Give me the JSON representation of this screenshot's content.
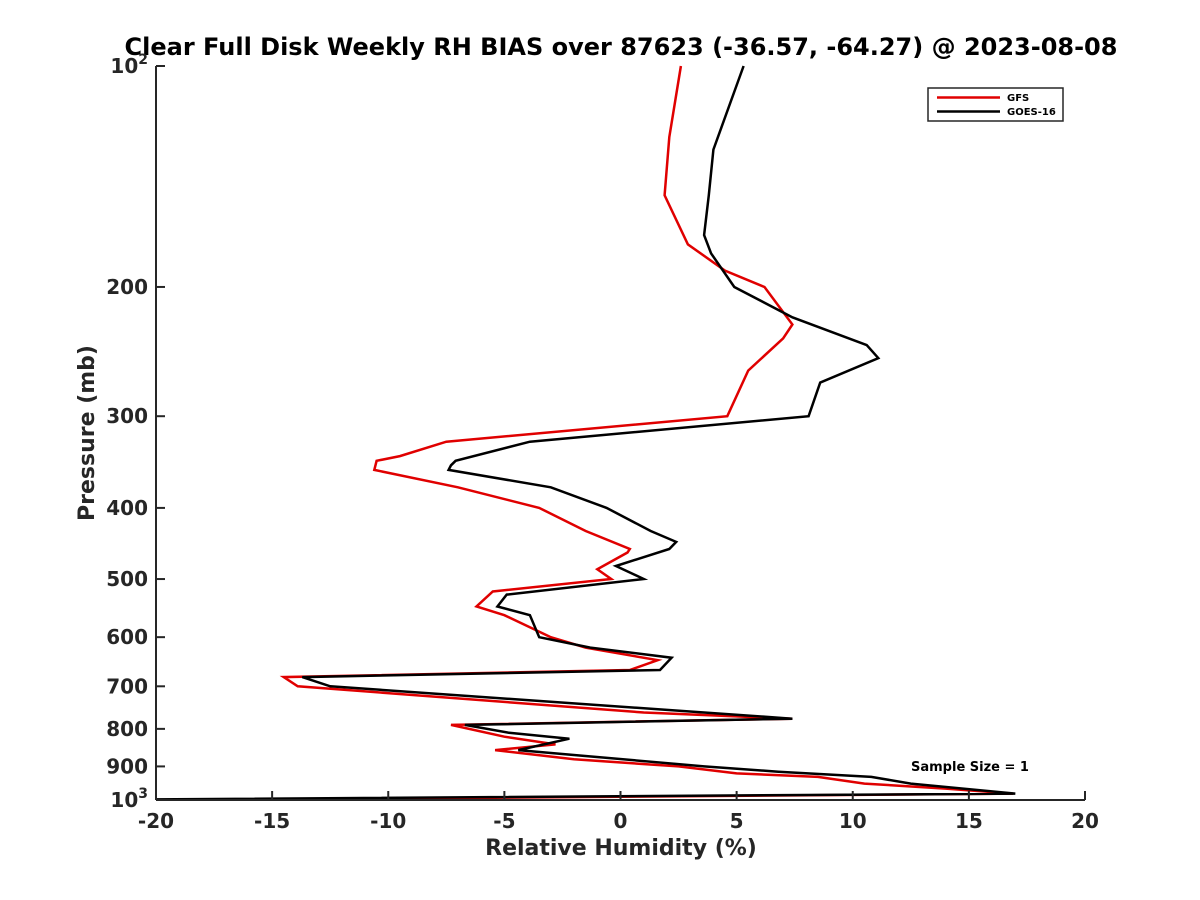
{
  "chart_data": {
    "type": "line",
    "title": "Clear Full Disk Weekly RH BIAS over 87623 (-36.57, -64.27) @ 2023-08-08",
    "xlabel": "Relative Humidity (%)",
    "ylabel": "Pressure (mb)",
    "xlim": [
      -20,
      20
    ],
    "ylim": [
      100,
      1000
    ],
    "y_scale": "log",
    "y_reversed": true,
    "grid": false,
    "legend_position": "top-right",
    "annotation": "Sample Size = 1",
    "x_ticks": [
      "-20",
      "-15",
      "-10",
      "-5",
      "0",
      "5",
      "10",
      "15",
      "20"
    ],
    "x_tick_values": [
      -20,
      -15,
      -10,
      -5,
      0,
      5,
      10,
      15,
      20
    ],
    "y_ticks": [
      {
        "value": 100,
        "base": "10",
        "exp": "2"
      },
      {
        "value": 200,
        "label": "200"
      },
      {
        "value": 300,
        "label": "300"
      },
      {
        "value": 400,
        "label": "400"
      },
      {
        "value": 500,
        "label": "500"
      },
      {
        "value": 600,
        "label": "600"
      },
      {
        "value": 700,
        "label": "700"
      },
      {
        "value": 800,
        "label": "800"
      },
      {
        "value": 900,
        "label": "900"
      },
      {
        "value": 1000,
        "base": "10",
        "exp": "3"
      }
    ],
    "series": [
      {
        "name": "GFS",
        "color": "#e00000",
        "points": [
          [
            2.6,
            100
          ],
          [
            2.1,
            125
          ],
          [
            1.9,
            150
          ],
          [
            2.9,
            175
          ],
          [
            4.5,
            190
          ],
          [
            6.2,
            200
          ],
          [
            7.4,
            225
          ],
          [
            7.0,
            235
          ],
          [
            5.5,
            260
          ],
          [
            4.6,
            300
          ],
          [
            -7.5,
            325
          ],
          [
            -9.5,
            340
          ],
          [
            -10.5,
            345
          ],
          [
            -10.6,
            355
          ],
          [
            -7.0,
            375
          ],
          [
            -3.5,
            400
          ],
          [
            -1.5,
            430
          ],
          [
            0.4,
            455
          ],
          [
            0.3,
            460
          ],
          [
            -1.0,
            485
          ],
          [
            -0.4,
            500
          ],
          [
            -5.5,
            520
          ],
          [
            -6.2,
            545
          ],
          [
            -5.0,
            560
          ],
          [
            -3.0,
            600
          ],
          [
            -1.5,
            620
          ],
          [
            1.6,
            645
          ],
          [
            0.4,
            665
          ],
          [
            -14.5,
            680
          ],
          [
            -13.9,
            700
          ],
          [
            1.0,
            760
          ],
          [
            7.4,
            775
          ],
          [
            -7.3,
            790
          ],
          [
            -5.0,
            820
          ],
          [
            -2.8,
            840
          ],
          [
            -5.4,
            855
          ],
          [
            -2.0,
            880
          ],
          [
            2.5,
            900
          ],
          [
            5.0,
            920
          ],
          [
            8.5,
            930
          ],
          [
            10.5,
            950
          ],
          [
            14.0,
            965
          ],
          [
            16.9,
            980
          ],
          [
            -14.0,
            998
          ]
        ]
      },
      {
        "name": "GOES-16",
        "color": "#000000",
        "points": [
          [
            5.3,
            100
          ],
          [
            4.0,
            130
          ],
          [
            3.8,
            150
          ],
          [
            3.6,
            170
          ],
          [
            3.9,
            180
          ],
          [
            4.9,
            200
          ],
          [
            7.4,
            220
          ],
          [
            10.6,
            240
          ],
          [
            11.1,
            250
          ],
          [
            8.6,
            270
          ],
          [
            8.1,
            300
          ],
          [
            -3.9,
            325
          ],
          [
            -7.1,
            345
          ],
          [
            -7.3,
            350
          ],
          [
            -7.4,
            355
          ],
          [
            -3.0,
            375
          ],
          [
            -0.6,
            400
          ],
          [
            1.3,
            430
          ],
          [
            2.4,
            445
          ],
          [
            2.1,
            455
          ],
          [
            -0.2,
            480
          ],
          [
            1.0,
            500
          ],
          [
            -4.9,
            525
          ],
          [
            -5.3,
            545
          ],
          [
            -3.9,
            560
          ],
          [
            -3.5,
            600
          ],
          [
            -1.3,
            620
          ],
          [
            2.2,
            640
          ],
          [
            1.7,
            665
          ],
          [
            -13.7,
            680
          ],
          [
            -12.5,
            700
          ],
          [
            3.6,
            760
          ],
          [
            7.4,
            775
          ],
          [
            -6.7,
            790
          ],
          [
            -4.8,
            810
          ],
          [
            -2.2,
            825
          ],
          [
            -4.4,
            855
          ],
          [
            -1.7,
            870
          ],
          [
            3.6,
            900
          ],
          [
            6.8,
            915
          ],
          [
            10.8,
            930
          ],
          [
            12.5,
            950
          ],
          [
            17.0,
            980
          ],
          [
            -20.0,
            998
          ]
        ]
      }
    ]
  }
}
